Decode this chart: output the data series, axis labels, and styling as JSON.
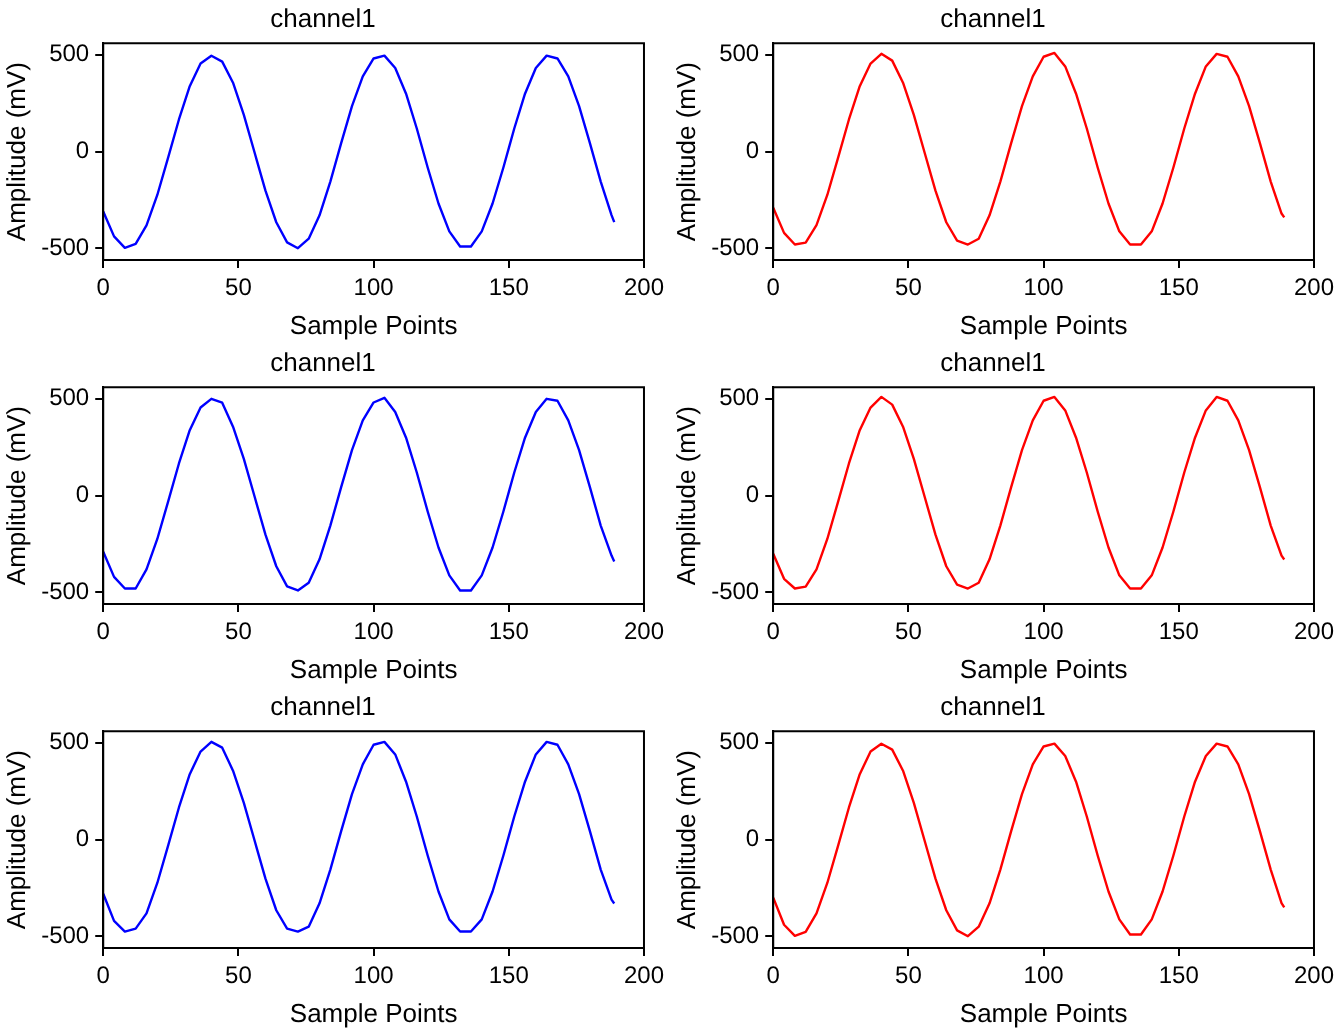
{
  "chart_data": [
    {
      "type": "line",
      "title": "channel1",
      "xlabel": "Sample Points",
      "ylabel": "Amplitude (mV)",
      "xlim": [
        0,
        200
      ],
      "xticks": [
        0,
        50,
        100,
        150,
        200
      ],
      "ylim": [
        -560,
        560
      ],
      "yticks": [
        -500,
        0,
        500
      ],
      "x": [
        0,
        4,
        8,
        12,
        16,
        20,
        24,
        28,
        32,
        36,
        40,
        44,
        48,
        52,
        56,
        60,
        64,
        68,
        72,
        76,
        80,
        84,
        88,
        92,
        96,
        100,
        104,
        108,
        112,
        116,
        120,
        124,
        128,
        132,
        136,
        140,
        144,
        148,
        152,
        156,
        160,
        164,
        168,
        172,
        176,
        180,
        184,
        188,
        189
      ],
      "series": [
        {
          "color": "#0000ff",
          "values": [
            -309,
            -438,
            -497,
            -477,
            -381,
            -224,
            -31,
            166,
            338,
            455,
            495,
            465,
            356,
            190,
            -6,
            -202,
            -365,
            -469,
            -499,
            -450,
            -329,
            -155,
            44,
            235,
            389,
            481,
            496,
            432,
            299,
            118,
            -82,
            -268,
            -412,
            -490,
            -490,
            -412,
            -268,
            -82,
            118,
            299,
            432,
            496,
            481,
            389,
            235,
            44,
            -155,
            -328,
            -364
          ]
        }
      ]
    },
    {
      "type": "line",
      "title": "channel1",
      "xlabel": "Sample Points",
      "ylabel": "Amplitude (mV)",
      "xlim": [
        0,
        200
      ],
      "xticks": [
        0,
        50,
        100,
        150,
        200
      ],
      "ylim": [
        -560,
        560
      ],
      "yticks": [
        -500,
        0,
        500
      ],
      "x": [
        0,
        4,
        8,
        12,
        16,
        20,
        24,
        28,
        32,
        36,
        40,
        44,
        48,
        52,
        56,
        60,
        64,
        68,
        72,
        76,
        80,
        84,
        88,
        92,
        96,
        100,
        104,
        108,
        112,
        116,
        120,
        124,
        128,
        132,
        136,
        140,
        144,
        148,
        152,
        156,
        160,
        164,
        168,
        172,
        176,
        180,
        184,
        188,
        189
      ],
      "series": [
        {
          "color": "#ff0000",
          "values": [
            -290,
            -420,
            -480,
            -470,
            -380,
            -224,
            -31,
            166,
            338,
            455,
            505,
            470,
            356,
            190,
            -6,
            -202,
            -365,
            -460,
            -480,
            -450,
            -329,
            -155,
            44,
            235,
            389,
            490,
            510,
            440,
            299,
            118,
            -82,
            -268,
            -412,
            -480,
            -480,
            -412,
            -268,
            -82,
            118,
            299,
            440,
            505,
            490,
            389,
            235,
            44,
            -155,
            -320,
            -340
          ]
        }
      ]
    },
    {
      "type": "line",
      "title": "channel1",
      "xlabel": "Sample Points",
      "ylabel": "Amplitude (mV)",
      "xlim": [
        0,
        200
      ],
      "xticks": [
        0,
        50,
        100,
        150,
        200
      ],
      "ylim": [
        -560,
        560
      ],
      "yticks": [
        -500,
        0,
        500
      ],
      "x": [
        0,
        4,
        8,
        12,
        16,
        20,
        24,
        28,
        32,
        36,
        40,
        44,
        48,
        52,
        56,
        60,
        64,
        68,
        72,
        76,
        80,
        84,
        88,
        92,
        96,
        100,
        104,
        108,
        112,
        116,
        120,
        124,
        128,
        132,
        136,
        140,
        144,
        148,
        152,
        156,
        160,
        164,
        168,
        172,
        176,
        180,
        184,
        188,
        189
      ],
      "series": [
        {
          "color": "#0000ff",
          "values": [
            -290,
            -420,
            -480,
            -480,
            -381,
            -224,
            -31,
            166,
            338,
            455,
            500,
            480,
            356,
            190,
            -6,
            -202,
            -365,
            -469,
            -490,
            -450,
            -329,
            -155,
            44,
            235,
            389,
            481,
            505,
            432,
            299,
            118,
            -82,
            -268,
            -412,
            -490,
            -490,
            -412,
            -268,
            -82,
            118,
            299,
            432,
            500,
            490,
            389,
            235,
            44,
            -155,
            -310,
            -340
          ]
        }
      ]
    },
    {
      "type": "line",
      "title": "channel1",
      "xlabel": "Sample Points",
      "ylabel": "Amplitude (mV)",
      "xlim": [
        0,
        200
      ],
      "xticks": [
        0,
        50,
        100,
        150,
        200
      ],
      "ylim": [
        -560,
        560
      ],
      "yticks": [
        -500,
        0,
        500
      ],
      "x": [
        0,
        4,
        8,
        12,
        16,
        20,
        24,
        28,
        32,
        36,
        40,
        44,
        48,
        52,
        56,
        60,
        64,
        68,
        72,
        76,
        80,
        84,
        88,
        92,
        96,
        100,
        104,
        108,
        112,
        116,
        120,
        124,
        128,
        132,
        136,
        140,
        144,
        148,
        152,
        156,
        160,
        164,
        168,
        172,
        176,
        180,
        184,
        188,
        189
      ],
      "series": [
        {
          "color": "#ff0000",
          "values": [
            -300,
            -430,
            -480,
            -470,
            -381,
            -224,
            -31,
            166,
            338,
            455,
            510,
            470,
            356,
            190,
            -6,
            -202,
            -365,
            -460,
            -480,
            -450,
            -329,
            -155,
            44,
            235,
            389,
            490,
            510,
            440,
            299,
            118,
            -82,
            -268,
            -412,
            -480,
            -480,
            -412,
            -268,
            -82,
            118,
            299,
            440,
            510,
            490,
            389,
            235,
            44,
            -155,
            -310,
            -330
          ]
        }
      ]
    },
    {
      "type": "line",
      "title": "channel1",
      "xlabel": "Sample Points",
      "ylabel": "Amplitude (mV)",
      "xlim": [
        0,
        200
      ],
      "xticks": [
        0,
        50,
        100,
        150,
        200
      ],
      "ylim": [
        -560,
        560
      ],
      "yticks": [
        -500,
        0,
        500
      ],
      "x": [
        0,
        4,
        8,
        12,
        16,
        20,
        24,
        28,
        32,
        36,
        40,
        44,
        48,
        52,
        56,
        60,
        64,
        68,
        72,
        76,
        80,
        84,
        88,
        92,
        96,
        100,
        104,
        108,
        112,
        116,
        120,
        124,
        128,
        132,
        136,
        140,
        144,
        148,
        152,
        156,
        160,
        164,
        168,
        172,
        176,
        180,
        184,
        188,
        189
      ],
      "series": [
        {
          "color": "#0000ff",
          "values": [
            -280,
            -420,
            -475,
            -460,
            -381,
            -224,
            -31,
            166,
            338,
            455,
            505,
            475,
            356,
            190,
            -6,
            -202,
            -365,
            -460,
            -475,
            -450,
            -329,
            -155,
            44,
            235,
            389,
            490,
            505,
            440,
            299,
            118,
            -82,
            -268,
            -412,
            -475,
            -475,
            -412,
            -268,
            -82,
            118,
            299,
            440,
            505,
            490,
            389,
            235,
            44,
            -155,
            -310,
            -330
          ]
        }
      ]
    },
    {
      "type": "line",
      "title": "channel1",
      "xlabel": "Sample Points",
      "ylabel": "Amplitude (mV)",
      "xlim": [
        0,
        200
      ],
      "xticks": [
        0,
        50,
        100,
        150,
        200
      ],
      "ylim": [
        -560,
        560
      ],
      "yticks": [
        -500,
        0,
        500
      ],
      "x": [
        0,
        4,
        8,
        12,
        16,
        20,
        24,
        28,
        32,
        36,
        40,
        44,
        48,
        52,
        56,
        60,
        64,
        68,
        72,
        76,
        80,
        84,
        88,
        92,
        96,
        100,
        104,
        108,
        112,
        116,
        120,
        124,
        128,
        132,
        136,
        140,
        144,
        148,
        152,
        156,
        160,
        164,
        168,
        172,
        176,
        180,
        184,
        188,
        189
      ],
      "series": [
        {
          "color": "#ff0000",
          "values": [
            -300,
            -440,
            -497,
            -477,
            -381,
            -224,
            -31,
            166,
            338,
            455,
            495,
            465,
            356,
            190,
            -6,
            -202,
            -365,
            -469,
            -499,
            -450,
            -329,
            -155,
            44,
            235,
            389,
            481,
            496,
            432,
            299,
            118,
            -82,
            -268,
            -412,
            -490,
            -490,
            -412,
            -268,
            -82,
            118,
            299,
            432,
            496,
            481,
            389,
            235,
            44,
            -155,
            -328,
            -350
          ]
        }
      ]
    }
  ]
}
